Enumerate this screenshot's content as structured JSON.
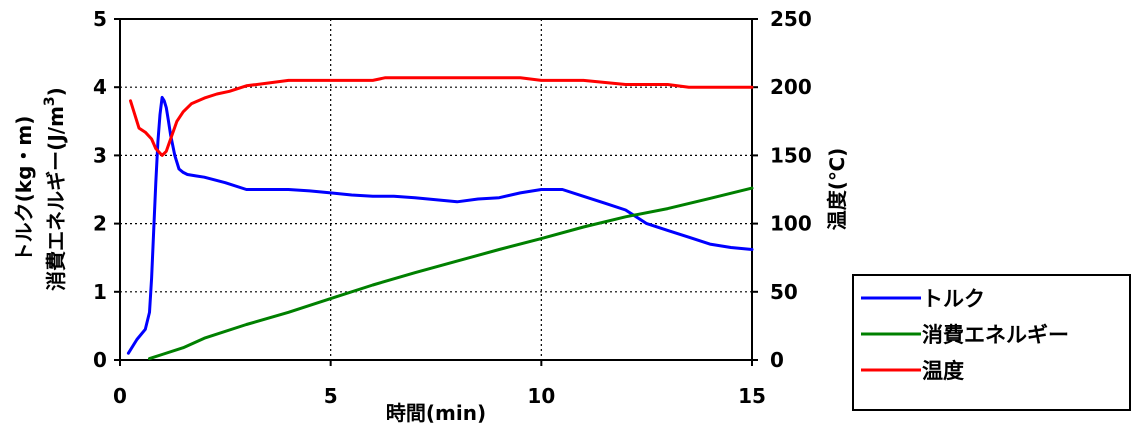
{
  "chart_data": {
    "type": "line",
    "xlabel": "時間(min)",
    "ylabel_left_line1": "トルク(kg・m)",
    "ylabel_left_line2": "消費エネルギー(J/m",
    "ylabel_left_sup": "3",
    "ylabel_left_close": ")",
    "ylabel_right": "温度(℃)",
    "xlim": [
      0,
      15
    ],
    "ylim_left": [
      0,
      5
    ],
    "ylim_right": [
      0,
      250
    ],
    "x_ticks": [
      0,
      5,
      10,
      15
    ],
    "y_ticks_left": [
      0,
      1,
      2,
      3,
      4,
      5
    ],
    "y_ticks_right": [
      0,
      50,
      100,
      150,
      200,
      250
    ],
    "grid": "dotted",
    "legend_position": "right",
    "series": [
      {
        "name": "トルク",
        "axis": "left",
        "color": "#0000ff",
        "x": [
          0.2,
          0.4,
          0.6,
          0.7,
          0.75,
          0.8,
          0.85,
          0.9,
          0.95,
          1.0,
          1.05,
          1.1,
          1.15,
          1.2,
          1.3,
          1.4,
          1.5,
          1.6,
          1.8,
          2.0,
          2.5,
          3.0,
          3.5,
          4.0,
          4.5,
          5.0,
          5.5,
          6.0,
          6.5,
          7.0,
          7.5,
          8.0,
          8.5,
          9.0,
          9.5,
          10.0,
          10.5,
          11.0,
          11.5,
          12.0,
          12.5,
          13.0,
          13.5,
          14.0,
          14.5,
          15.0
        ],
        "y": [
          0.1,
          0.3,
          0.45,
          0.7,
          1.2,
          1.9,
          2.6,
          3.2,
          3.6,
          3.85,
          3.8,
          3.7,
          3.5,
          3.3,
          3.0,
          2.8,
          2.75,
          2.72,
          2.7,
          2.68,
          2.6,
          2.5,
          2.5,
          2.5,
          2.48,
          2.45,
          2.42,
          2.4,
          2.4,
          2.38,
          2.35,
          2.32,
          2.36,
          2.38,
          2.45,
          2.5,
          2.5,
          2.4,
          2.3,
          2.2,
          2.0,
          1.9,
          1.8,
          1.7,
          1.65,
          1.62
        ]
      },
      {
        "name": "消費エネルギー",
        "axis": "left",
        "color": "#008000",
        "x": [
          0.7,
          1.0,
          1.5,
          2.0,
          3.0,
          4.0,
          5.0,
          6.0,
          7.0,
          8.0,
          9.0,
          10.0,
          11.0,
          12.0,
          13.0,
          14.0,
          15.0
        ],
        "y": [
          0.02,
          0.08,
          0.18,
          0.32,
          0.52,
          0.7,
          0.9,
          1.1,
          1.28,
          1.45,
          1.62,
          1.78,
          1.95,
          2.1,
          2.22,
          2.37,
          2.52
        ]
      },
      {
        "name": "温度",
        "axis": "right",
        "color": "#ff0000",
        "x": [
          0.25,
          0.45,
          0.6,
          0.75,
          0.85,
          1.0,
          1.1,
          1.2,
          1.35,
          1.5,
          1.7,
          2.0,
          2.3,
          2.6,
          3.0,
          3.5,
          4.0,
          5.0,
          6.0,
          6.3,
          7.0,
          8.0,
          9.0,
          9.5,
          10.0,
          11.0,
          12.0,
          13.0,
          13.5,
          14.0,
          15.0
        ],
        "y": [
          190,
          170,
          167,
          162,
          155,
          150,
          153,
          162,
          175,
          182,
          188,
          192,
          195,
          197,
          201,
          203,
          205,
          205,
          205,
          207,
          207,
          207,
          207,
          207,
          205,
          205,
          202,
          202,
          200,
          200,
          200
        ]
      }
    ]
  }
}
